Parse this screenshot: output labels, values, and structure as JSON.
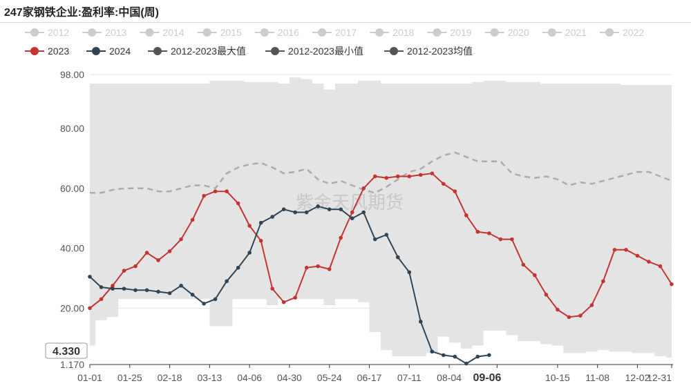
{
  "title": "247家钢铁企业:盈利率:中国(周)",
  "watermark": "紫金天风期货",
  "tooltip": {
    "y_value": "4.330",
    "x_value": "09-06"
  },
  "chart_data": {
    "type": "line",
    "title": "247家钢铁企业:盈利率:中国(周)",
    "ylim": [
      1.17,
      98.0
    ],
    "yticks": [
      "98.00",
      "80.00",
      "60.00",
      "40.00",
      "20.00",
      "1.170"
    ],
    "ytick_values": [
      98,
      80,
      60,
      40,
      20,
      1.17
    ],
    "xticks": [
      "01-01",
      "01-25",
      "02-18",
      "03-13",
      "04-06",
      "04-30",
      "05-24",
      "06-17",
      "07-11",
      "08-04",
      "09-06",
      "10-15",
      "11-08",
      "12-02",
      "12-31"
    ],
    "legend_inactive": [
      "2012",
      "2013",
      "2014",
      "2015",
      "2016",
      "2017",
      "2018",
      "2019",
      "2020",
      "2021",
      "2022"
    ],
    "legend_active": [
      {
        "name": "2023",
        "color": "#c23531"
      },
      {
        "name": "2024",
        "color": "#2f4554"
      },
      {
        "name": "2012-2023最大值",
        "color": "#555555"
      },
      {
        "name": "2012-2023最小值",
        "color": "#555555"
      },
      {
        "name": "2012-2023均值",
        "color": "#555555"
      }
    ],
    "colors": {
      "inactive": "#cccccc",
      "band": "#e4e4e4",
      "mean": "#aaaaaa",
      "s2023": "#c23531",
      "s2024": "#2f4554"
    },
    "series": [
      {
        "name": "2023",
        "values": [
          20,
          23,
          27.5,
          32.5,
          34,
          38.5,
          36,
          39,
          43,
          49.5,
          57.5,
          59,
          59,
          55,
          47.5,
          42.5,
          26.5,
          22,
          23.5,
          33.5,
          34,
          33,
          43.5,
          52,
          60,
          64,
          63.5,
          64,
          64,
          64.5,
          65,
          61.5,
          59,
          51,
          45.5,
          45,
          43,
          43,
          34.5,
          31,
          24.5,
          19.5,
          17,
          17.5,
          21,
          29,
          39.5,
          39.5,
          37.5,
          35.5,
          34,
          28
        ]
      },
      {
        "name": "2024",
        "values": [
          30.5,
          27,
          26.5,
          26.5,
          26,
          26,
          25.5,
          25,
          27.5,
          24.5,
          21.5,
          23,
          29,
          33.5,
          38.5,
          48.5,
          50.5,
          53,
          52,
          52,
          54,
          53,
          53,
          50,
          52,
          43,
          44.5,
          37,
          32,
          15.5,
          5.5,
          4.3,
          3.8,
          1.5,
          3.8,
          4.33
        ]
      },
      {
        "name": "2012-2023最大值",
        "values": [
          95,
          95,
          95,
          95,
          95,
          95,
          95,
          95,
          95,
          95,
          95,
          96,
          96,
          96,
          95.5,
          95.5,
          95.5,
          95,
          97,
          96.5,
          95,
          93,
          95,
          95,
          96,
          96,
          95,
          95,
          95,
          95,
          95,
          95,
          95,
          95,
          95.5,
          96,
          96,
          95.5,
          95.5,
          95.5,
          95,
          95,
          95,
          95,
          95,
          95,
          95,
          94.5,
          94.5,
          94.5,
          94.5,
          94.5
        ]
      },
      {
        "name": "2012-2023最小值",
        "values": [
          7.5,
          16,
          17,
          23,
          23,
          23,
          23,
          23,
          23,
          23,
          23,
          14,
          14,
          23,
          23,
          23,
          21,
          23,
          23,
          23,
          23,
          21,
          23,
          23,
          22,
          12,
          6,
          4,
          4,
          4,
          5,
          10.5,
          8.5,
          6.5,
          7.5,
          12.5,
          12.5,
          11,
          9,
          9,
          8,
          7.5,
          5,
          5,
          5.5,
          6,
          5.5,
          5.5,
          5,
          5,
          4,
          3.5
        ]
      },
      {
        "name": "2012-2023均值",
        "values": [
          58.5,
          58.5,
          59.5,
          60,
          60,
          60,
          59,
          59,
          60,
          61,
          61,
          60,
          65,
          67,
          68,
          68.5,
          67,
          65,
          65.5,
          66.5,
          63,
          61.5,
          62.5,
          61,
          59.5,
          58.5,
          60.5,
          63,
          65.5,
          66.5,
          69,
          71,
          72,
          70.5,
          69,
          69,
          69,
          65,
          64,
          63.5,
          64,
          63,
          61,
          62,
          61.5,
          62.5,
          63.5,
          64.5,
          65.5,
          65.5,
          64,
          62.5
        ]
      }
    ]
  }
}
